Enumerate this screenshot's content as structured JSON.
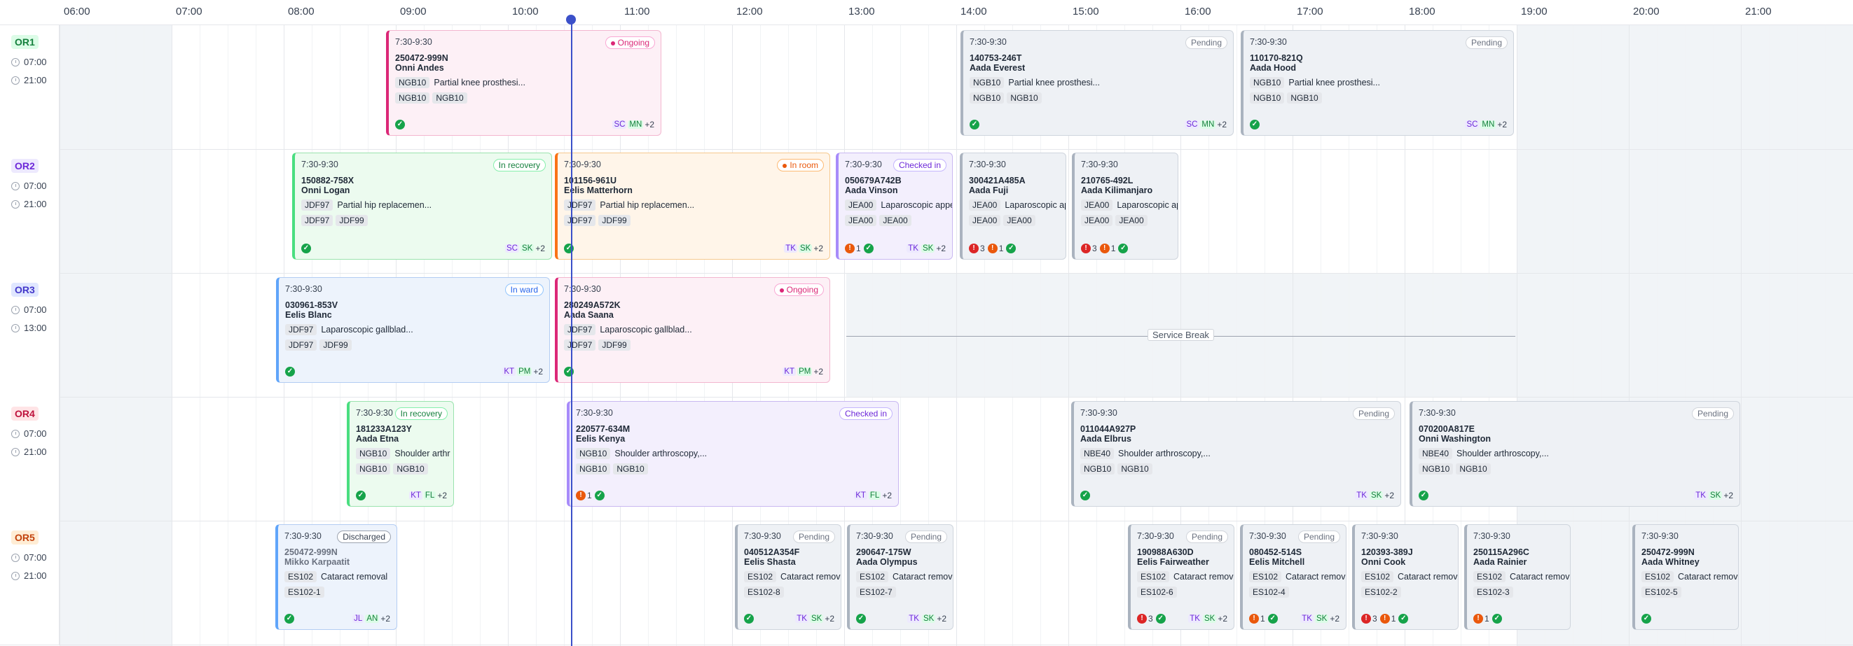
{
  "hours": [
    "06:00",
    "07:00",
    "08:00",
    "09:00",
    "10:00",
    "11:00",
    "12:00",
    "13:00",
    "14:00",
    "15:00",
    "16:00",
    "17:00",
    "18:00",
    "19:00",
    "20:00",
    "21:00"
  ],
  "rooms": [
    {
      "label": "OR1",
      "start": "07:00",
      "end": "21:00",
      "color": "#15803d",
      "bg": "#dcfce7"
    },
    {
      "label": "OR2",
      "start": "07:00",
      "end": "21:00",
      "color": "#6d28d9",
      "bg": "#ede9fe"
    },
    {
      "label": "OR3",
      "start": "07:00",
      "end": "13:00",
      "color": "#4338ca",
      "bg": "#e0e7ff"
    },
    {
      "label": "OR4",
      "start": "07:00",
      "end": "21:00",
      "color": "#be123c",
      "bg": "#ffe4e6"
    },
    {
      "label": "OR5",
      "start": "07:00",
      "end": "21:00",
      "color": "#c2410c",
      "bg": "#ffedd5"
    }
  ],
  "service_break": "Service Break",
  "cards": [
    {
      "time": "7:30-9:30",
      "status": "Ongoing",
      "id": "250472-999N",
      "name": "Onni Andes",
      "code": "NGB10",
      "proc": "Partial knee prosthesi...",
      "tags": [
        "NGB10",
        "NGB10"
      ],
      "alerts": [],
      "staff": [
        "SC",
        "MN"
      ],
      "more": "+2"
    },
    {
      "time": "7:30-9:30",
      "status": "Pending",
      "id": "140753-246T",
      "name": "Aada Everest",
      "code": "NGB10",
      "proc": "Partial knee prosthesi...",
      "tags": [
        "NGB10",
        "NGB10"
      ],
      "alerts": [],
      "staff": [
        "SC",
        "MN"
      ],
      "more": "+2"
    },
    {
      "time": "7:30-9:30",
      "status": "Pending",
      "id": "110170-821Q",
      "name": "Aada Hood",
      "code": "NGB10",
      "proc": "Partial knee prosthesi...",
      "tags": [
        "NGB10",
        "NGB10"
      ],
      "alerts": [],
      "staff": [
        "SC",
        "MN"
      ],
      "more": "+2"
    },
    {
      "time": "7:30-9:30",
      "status": "In recovery",
      "id": "150882-758X",
      "name": "Onni Logan",
      "code": "JDF97",
      "proc": "Partial hip replacemen...",
      "tags": [
        "JDF97",
        "JDF99"
      ],
      "alerts": [],
      "staff": [
        "SC",
        "SK"
      ],
      "more": "+2"
    },
    {
      "time": "7:30-9:30",
      "status": "In room",
      "id": "101156-961U",
      "name": "Eelis Matterhorn",
      "code": "JDF97",
      "proc": "Partial hip replacemen...",
      "tags": [
        "JDF97",
        "JDF99"
      ],
      "alerts": [],
      "staff": [
        "TK",
        "SK"
      ],
      "more": "+2"
    },
    {
      "time": "7:30-9:30",
      "status": "Checked in",
      "id": "050679A742B",
      "name": "Aada Vinson",
      "code": "JEA00",
      "proc": "Laparoscopic appe",
      "tags": [
        "JEA00",
        "JEA00"
      ],
      "alerts": [
        {
          "level": "warn",
          "count": "1"
        }
      ],
      "staff": [
        "TK",
        "SK"
      ],
      "more": "+2"
    },
    {
      "time": "7:30-9:30",
      "status": "",
      "id": "300421A485A",
      "name": "Aada Fuji",
      "code": "JEA00",
      "proc": "Laparoscopic ap",
      "tags": [
        "JEA00",
        "JEA00"
      ],
      "alerts": [
        {
          "level": "crit",
          "count": "3"
        },
        {
          "level": "warn",
          "count": "1"
        }
      ],
      "staff": [],
      "more": ""
    },
    {
      "time": "7:30-9:30",
      "status": "",
      "id": "210765-492L",
      "name": "Aada Kilimanjaro",
      "code": "JEA00",
      "proc": "Laparoscopic ap",
      "tags": [
        "JEA00",
        "JEA00"
      ],
      "alerts": [
        {
          "level": "crit",
          "count": "3"
        },
        {
          "level": "warn",
          "count": "1"
        }
      ],
      "staff": [],
      "more": ""
    },
    {
      "time": "7:30-9:30",
      "status": "In ward",
      "id": "030961-853V",
      "name": "Eelis Blanc",
      "code": "JDF97",
      "proc": "Laparoscopic gallblad...",
      "tags": [
        "JDF97",
        "JDF99"
      ],
      "alerts": [],
      "staff": [
        "KT",
        "PM"
      ],
      "more": "+2"
    },
    {
      "time": "7:30-9:30",
      "status": "Ongoing",
      "id": "280249A572K",
      "name": "Aada Saana",
      "code": "JDF97",
      "proc": "Laparoscopic gallblad...",
      "tags": [
        "JDF97",
        "JDF99"
      ],
      "alerts": [],
      "staff": [
        "KT",
        "PM"
      ],
      "more": "+2"
    },
    {
      "time": "7:30-9:30",
      "status": "In recovery",
      "id": "181233A123Y",
      "name": "Aada Etna",
      "code": "NGB10",
      "proc": "Shoulder arthr",
      "tags": [
        "NGB10",
        "NGB10"
      ],
      "alerts": [],
      "staff": [
        "KT",
        "FL"
      ],
      "more": "+2"
    },
    {
      "time": "7:30-9:30",
      "status": "Checked in",
      "id": "220577-634M",
      "name": "Eelis Kenya",
      "code": "NGB10",
      "proc": "Shoulder arthroscopy,...",
      "tags": [
        "NGB10",
        "NGB10"
      ],
      "alerts": [
        {
          "level": "warn",
          "count": "1"
        }
      ],
      "staff": [
        "KT",
        "FL"
      ],
      "more": "+2"
    },
    {
      "time": "7:30-9:30",
      "status": "Pending",
      "id": "011044A927P",
      "name": "Aada Elbrus",
      "code": "NBE40",
      "proc": "Shoulder arthroscopy,...",
      "tags": [
        "NGB10",
        "NGB10"
      ],
      "alerts": [],
      "staff": [
        "TK",
        "SK"
      ],
      "more": "+2"
    },
    {
      "time": "7:30-9:30",
      "status": "Pending",
      "id": "070200A817E",
      "name": "Onni Washington",
      "code": "NBE40",
      "proc": "Shoulder arthroscopy,...",
      "tags": [
        "NGB10",
        "NGB10"
      ],
      "alerts": [],
      "staff": [
        "TK",
        "SK"
      ],
      "more": "+2"
    },
    {
      "time": "7:30-9:30",
      "status": "Discharged",
      "id": "250472-999N",
      "name": "Mikko Karpaatit",
      "code": "ES102",
      "proc": "Cataract removal",
      "tags": [
        "ES102-1"
      ],
      "alerts": [],
      "staff": [
        "JL",
        "AN"
      ],
      "more": "+2"
    },
    {
      "time": "7:30-9:30",
      "status": "Pending",
      "id": "040512A354F",
      "name": "Eelis Shasta",
      "code": "ES102",
      "proc": "Cataract removal",
      "tags": [
        "ES102-8"
      ],
      "alerts": [],
      "staff": [
        "TK",
        "SK"
      ],
      "more": "+2"
    },
    {
      "time": "7:30-9:30",
      "status": "Pending",
      "id": "290647-175W",
      "name": "Aada Olympus",
      "code": "ES102",
      "proc": "Cataract remova",
      "tags": [
        "ES102-7"
      ],
      "alerts": [],
      "staff": [
        "TK",
        "SK"
      ],
      "more": "+2"
    },
    {
      "time": "7:30-9:30",
      "status": "Pending",
      "id": "190988A630D",
      "name": "Eelis Fairweather",
      "code": "ES102",
      "proc": "Cataract remova",
      "tags": [
        "ES102-6"
      ],
      "alerts": [
        {
          "level": "crit",
          "count": "3"
        }
      ],
      "staff": [
        "TK",
        "SK"
      ],
      "more": "+2"
    },
    {
      "time": "7:30-9:30",
      "status": "Pending",
      "id": "080452-514S",
      "name": "Eelis Mitchell",
      "code": "ES102",
      "proc": "Cataract remova",
      "tags": [
        "ES102-4"
      ],
      "alerts": [
        {
          "level": "warn",
          "count": "1"
        }
      ],
      "staff": [
        "TK",
        "SK"
      ],
      "more": "+2"
    },
    {
      "time": "7:30-9:30",
      "status": "",
      "id": "120393-389J",
      "name": "Onni Cook",
      "code": "ES102",
      "proc": "Cataract remova",
      "tags": [
        "ES102-2"
      ],
      "alerts": [
        {
          "level": "crit",
          "count": "3"
        },
        {
          "level": "warn",
          "count": "1"
        }
      ],
      "staff": [],
      "more": ""
    },
    {
      "time": "7:30-9:30",
      "status": "",
      "id": "250115A296C",
      "name": "Aada Rainier",
      "code": "ES102",
      "proc": "Cataract remova",
      "tags": [
        "ES102-3"
      ],
      "alerts": [
        {
          "level": "warn",
          "count": "1"
        }
      ],
      "staff": [],
      "more": ""
    },
    {
      "time": "7:30-9:30",
      "status": "",
      "id": "250472-999N",
      "name": "Aada Whitney",
      "code": "ES102",
      "proc": "Cataract remova",
      "tags": [
        "ES102-5"
      ],
      "alerts": [],
      "staff": [],
      "more": ""
    }
  ],
  "colors": {
    "now": "#3b50c9",
    "ok": "#16a34a",
    "crit": "#dc2626",
    "warn": "#ea580c"
  }
}
